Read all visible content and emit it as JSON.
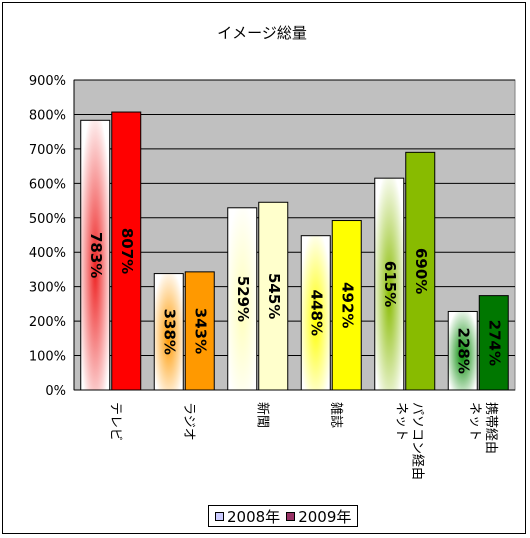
{
  "chart_data": {
    "type": "bar",
    "title": "イメージ総量",
    "categories": [
      "テレビ",
      "ラジオ",
      "新聞",
      "雑誌",
      "パソコン経由ネット",
      "携帯経由ネット"
    ],
    "category_lines": [
      [
        "テレビ"
      ],
      [
        "ラジオ"
      ],
      [
        "新聞"
      ],
      [
        "雑誌"
      ],
      [
        "パソコン経由",
        "ネット"
      ],
      [
        "携帯経由",
        "ネット"
      ]
    ],
    "series": [
      {
        "name": "2008年",
        "values": [
          783,
          338,
          529,
          448,
          615,
          228
        ],
        "labels": [
          "783%",
          "338%",
          "529%",
          "448%",
          "615%",
          "228%"
        ]
      },
      {
        "name": "2009年",
        "values": [
          807,
          343,
          545,
          492,
          690,
          274
        ],
        "labels": [
          "807%",
          "343%",
          "545%",
          "492%",
          "690%",
          "274%"
        ]
      }
    ],
    "bar_colors": {
      "2008": [
        "#ee2222",
        "#ff9900",
        "#ffffbb",
        "#ffff00",
        "#88bb00",
        "#008800"
      ],
      "2009": [
        "#ff0000",
        "#ff9900",
        "#ffffcc",
        "#ffff00",
        "#88bb00",
        "#007700"
      ]
    },
    "yticks": [
      "0%",
      "100%",
      "200%",
      "300%",
      "400%",
      "500%",
      "600%",
      "700%",
      "800%",
      "900%"
    ],
    "ylim": [
      0,
      900
    ],
    "grid": true,
    "plot_background": "#c0c0c0",
    "legend_position": "bottom",
    "legend": [
      "2008年",
      "2009年"
    ],
    "legend_colors": [
      "#ccccff",
      "#993366"
    ]
  }
}
